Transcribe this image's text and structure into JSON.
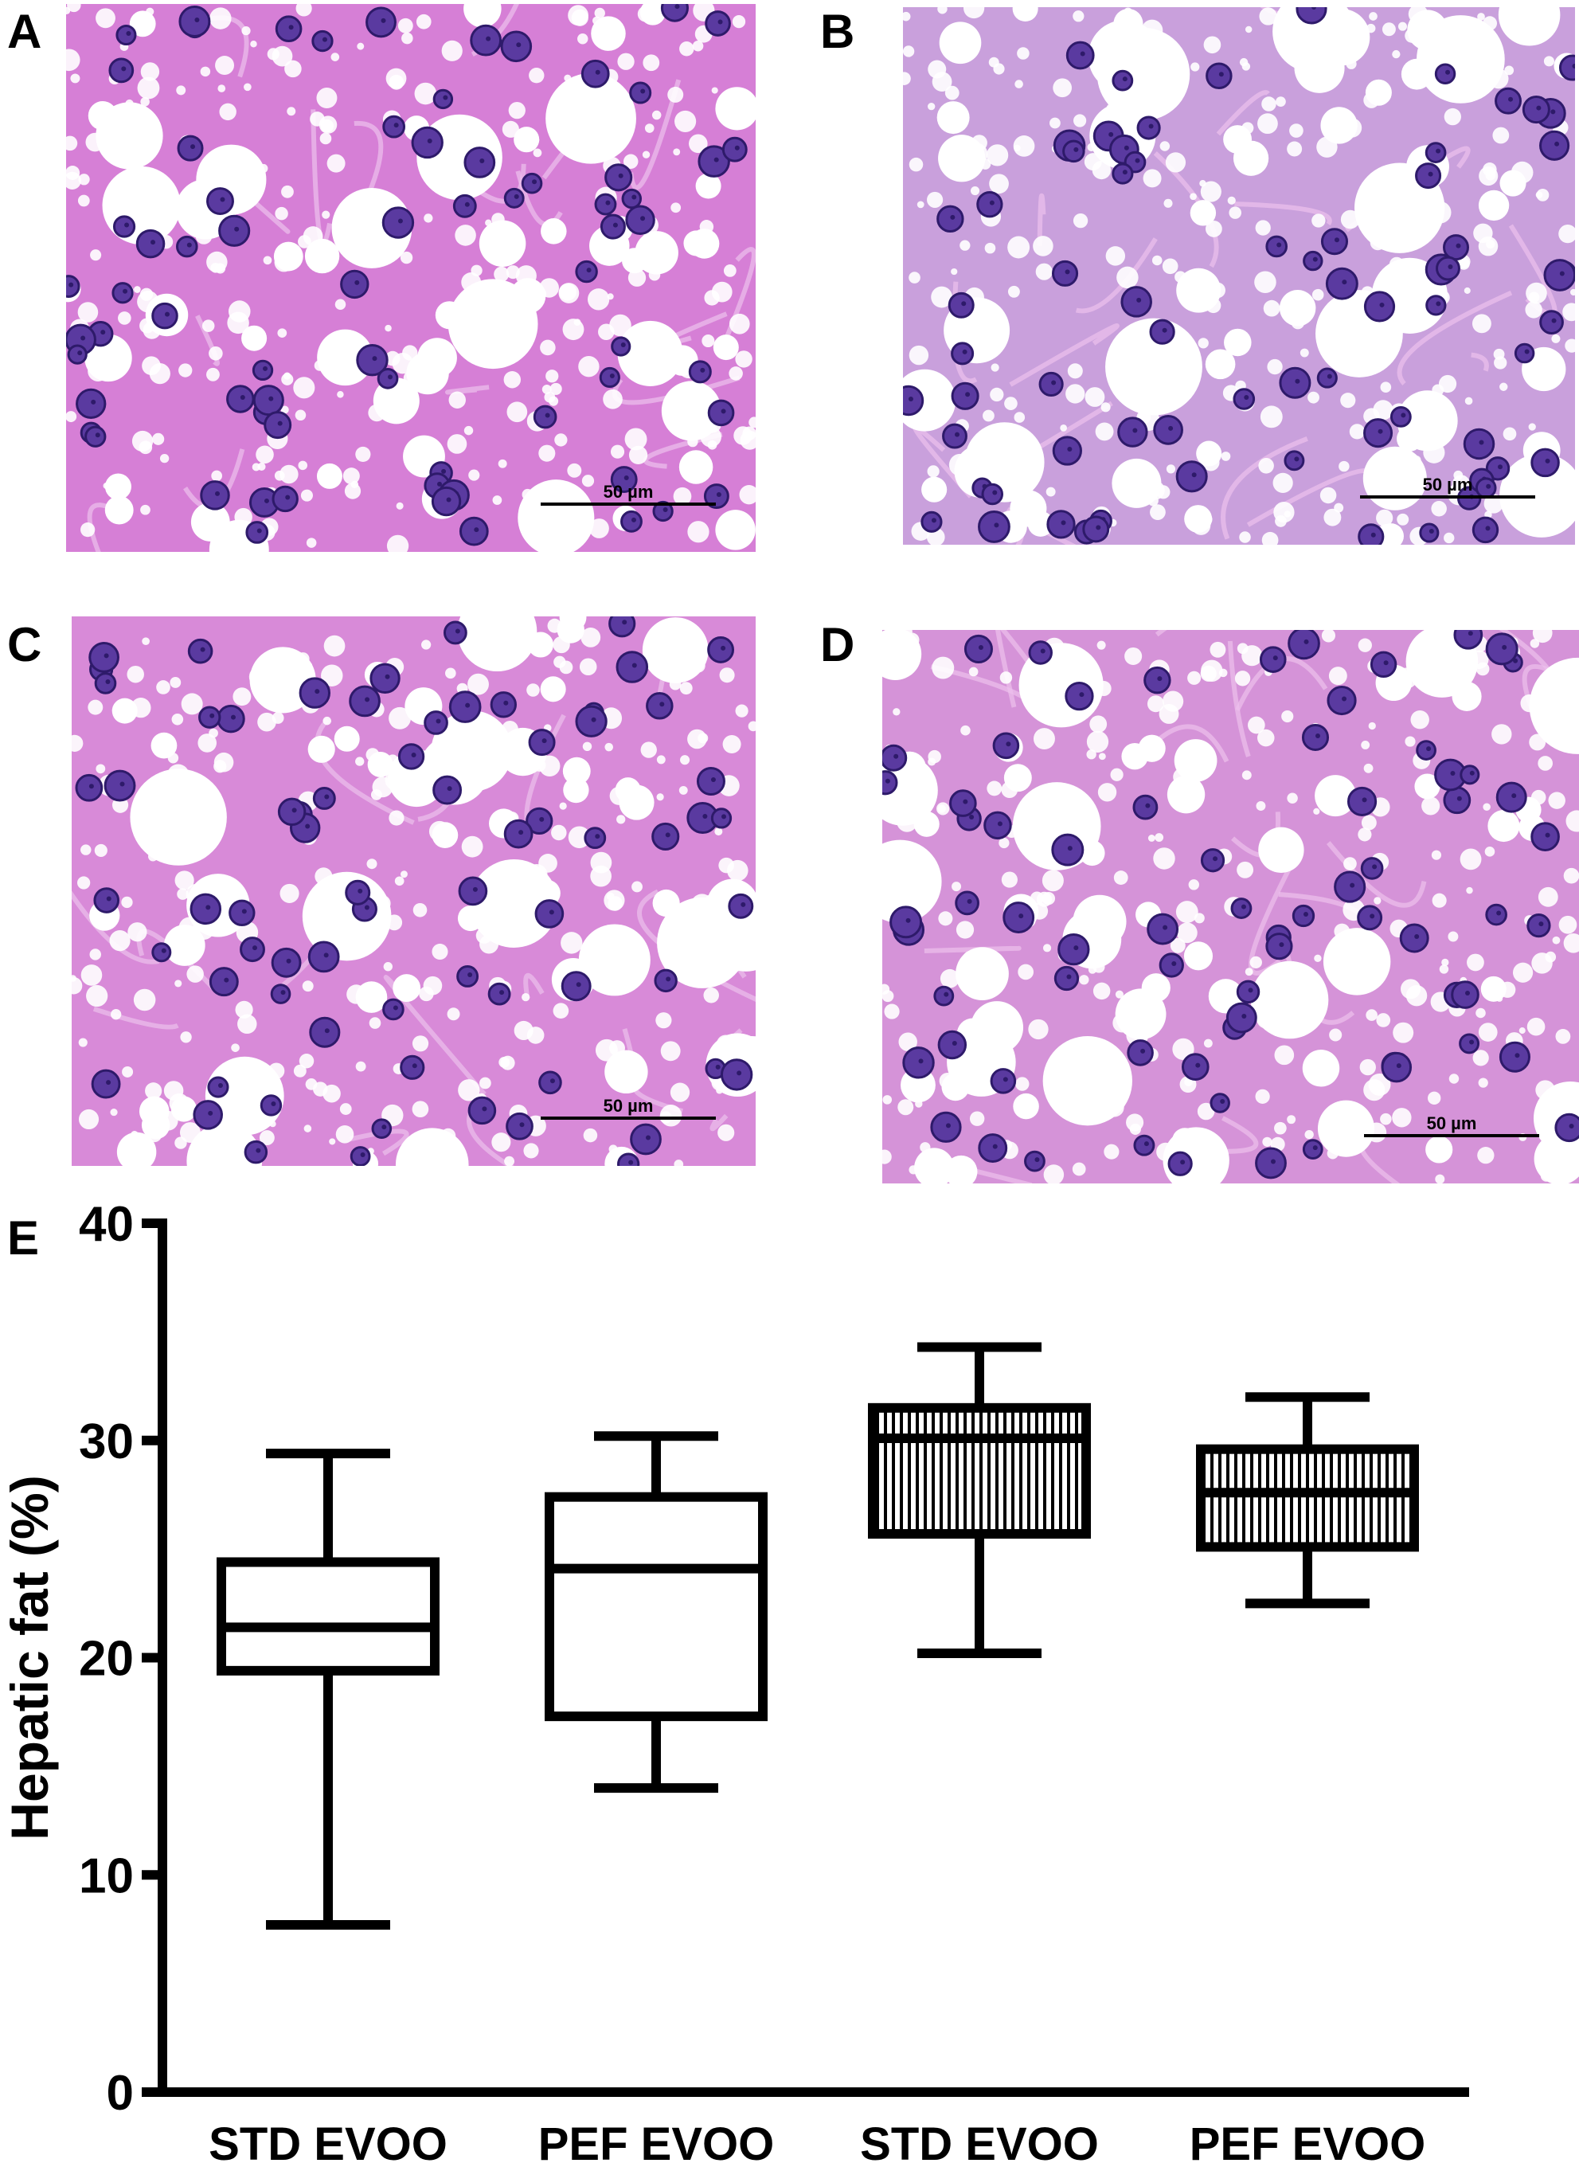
{
  "panels": [
    {
      "label": "A",
      "scale_bar": "50 µm"
    },
    {
      "label": "B",
      "scale_bar": "50 µm"
    },
    {
      "label": "C",
      "scale_bar": "50 µm"
    },
    {
      "label": "D",
      "scale_bar": "50 µm"
    }
  ],
  "chart_data": {
    "type": "box",
    "panel_label": "E",
    "y_label": "Hepatic fat (%)",
    "categories": [
      "STD EVOO",
      "PEF EVOO",
      "STD EVOO",
      "PEF EVOO"
    ],
    "boxes": [
      {
        "min": 7.7,
        "q1": 19.4,
        "median": 21.4,
        "q3": 24.4,
        "max": 29.4,
        "hatch": false
      },
      {
        "min": 14.0,
        "q1": 17.3,
        "median": 24.1,
        "q3": 27.4,
        "max": 30.2,
        "hatch": false
      },
      {
        "min": 20.2,
        "q1": 25.7,
        "median": 30.1,
        "q3": 31.5,
        "max": 34.3,
        "hatch": true
      },
      {
        "min": 22.5,
        "q1": 25.1,
        "median": 27.6,
        "q3": 29.6,
        "max": 32.0,
        "hatch": true
      }
    ],
    "color": "#000000",
    "ylim": [
      0,
      40
    ],
    "yticks": [
      0,
      10,
      20,
      30,
      40
    ]
  }
}
